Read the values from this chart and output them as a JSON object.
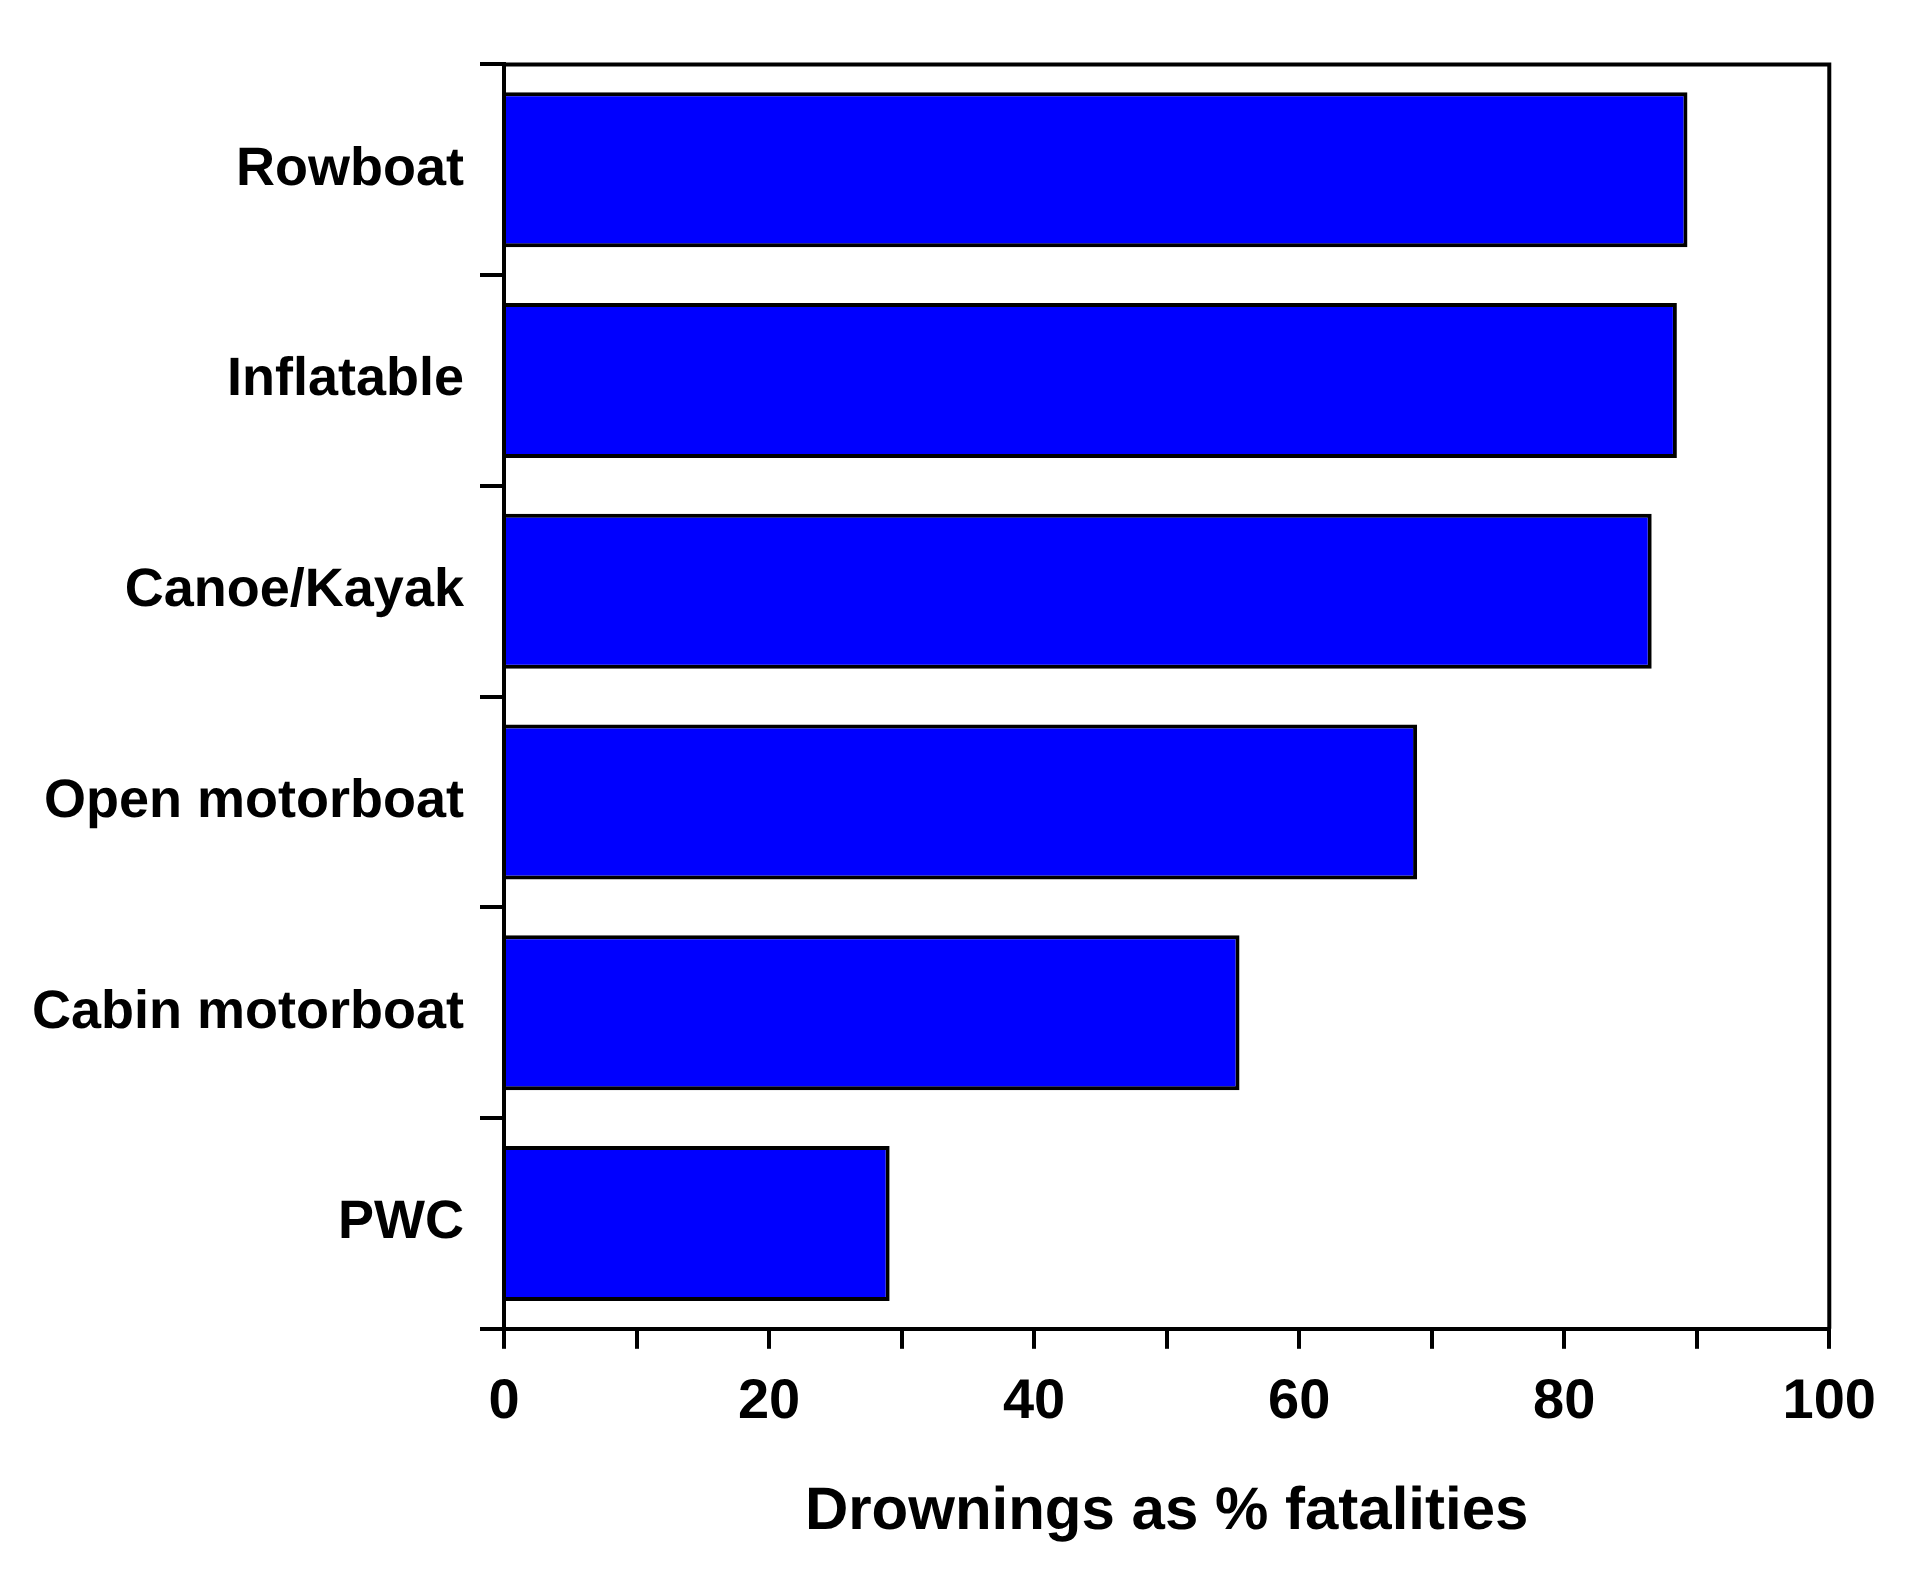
{
  "chart_data": {
    "type": "bar",
    "orientation": "horizontal",
    "xlabel": "Drownings as % fatalities",
    "categories": [
      "Rowboat",
      "Inflatable",
      "Canoe/Kayak",
      "Open motorboat",
      "Cabin motorboat",
      "PWC"
    ],
    "values": [
      89.3,
      88.5,
      86.6,
      68.9,
      55.5,
      29.1
    ],
    "color": "#0000ff",
    "xlim": [
      0,
      100
    ],
    "xticks": [
      0,
      {
        "value": 10,
        "label": null
      },
      20,
      {
        "value": 30,
        "label": null
      },
      40,
      {
        "value": 50,
        "label": null
      },
      60,
      {
        "value": 70,
        "label": null
      },
      80,
      {
        "value": 90,
        "label": null
      },
      100
    ],
    "grid": false,
    "legend": false
  }
}
